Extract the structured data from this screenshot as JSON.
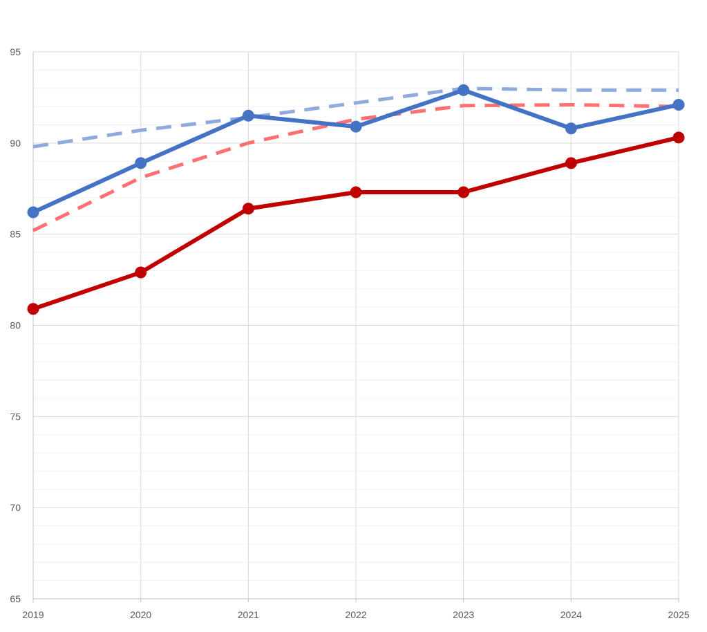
{
  "chart_data": {
    "type": "line",
    "title": "",
    "xlabel": "",
    "ylabel": "",
    "x": [
      "2019",
      "2020",
      "2021",
      "2022",
      "2023",
      "2024",
      "2025"
    ],
    "ylim": [
      65,
      95
    ],
    "y_ticks": [
      65,
      70,
      75,
      80,
      85,
      90,
      95
    ],
    "y_minor_step": 1,
    "grid": true,
    "legend": "none",
    "series": [
      {
        "color": "#c00000",
        "style": "solid",
        "markers": true,
        "width": 6,
        "values": [
          80.9,
          82.9,
          86.4,
          87.3,
          87.3,
          88.9,
          90.3
        ]
      },
      {
        "color": "#4472c4",
        "style": "solid",
        "markers": true,
        "width": 6,
        "values": [
          86.2,
          88.9,
          91.5,
          90.9,
          92.9,
          90.8,
          92.1
        ]
      },
      {
        "color": "#ff7070",
        "style": "dashed",
        "markers": false,
        "width": 5,
        "values": [
          85.2,
          88.1,
          90.0,
          91.3,
          92.05,
          92.1,
          92.0
        ]
      },
      {
        "color": "#8faadc",
        "style": "dashed",
        "markers": false,
        "width": 5,
        "values": [
          89.8,
          90.7,
          91.4,
          92.2,
          93.0,
          92.9,
          92.9
        ]
      }
    ]
  }
}
